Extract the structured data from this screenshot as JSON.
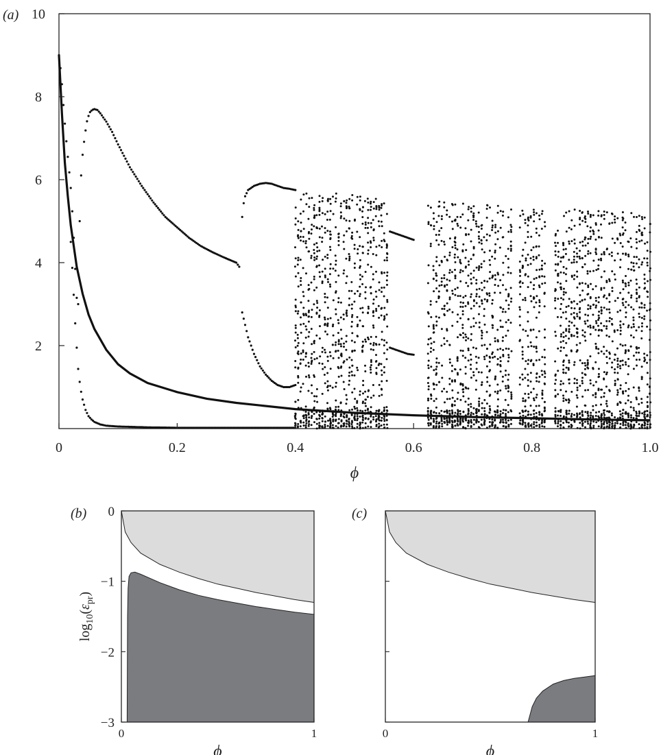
{
  "figure": {
    "panel_a_label": "(a)",
    "panel_b_label": "(b)",
    "panel_c_label": "(c)"
  },
  "chart_data": [
    {
      "type": "scatter",
      "panel": "(a)",
      "xlabel": "ϕ",
      "ylabel": "",
      "xlim": [
        0,
        1.0
      ],
      "ylim": [
        0,
        10
      ],
      "x_ticks": [
        "0",
        "0.2",
        "0.4",
        "0.6",
        "0.8",
        "1.0"
      ],
      "y_ticks": [
        "2",
        "4",
        "6",
        "8",
        "10"
      ],
      "grid": false,
      "series": [
        {
          "kind": "curve",
          "style": "thick",
          "x": [
            0.0,
            0.005,
            0.01,
            0.015,
            0.02,
            0.03,
            0.04,
            0.05,
            0.06,
            0.08,
            0.1,
            0.12,
            0.15,
            0.2,
            0.25,
            0.3,
            0.4,
            0.5,
            0.6,
            0.7,
            0.8,
            0.9,
            1.0
          ],
          "y": [
            9.0,
            7.6,
            6.4,
            5.6,
            4.9,
            3.9,
            3.25,
            2.75,
            2.4,
            1.9,
            1.55,
            1.33,
            1.1,
            0.88,
            0.72,
            0.62,
            0.47,
            0.38,
            0.32,
            0.28,
            0.25,
            0.22,
            0.2
          ]
        },
        {
          "kind": "dots",
          "x": [
            0.0,
            0.004,
            0.008,
            0.012,
            0.016,
            0.02,
            0.024,
            0.028,
            0.032,
            0.036,
            0.04,
            0.044,
            0.048,
            0.052,
            0.056,
            0.06,
            0.065,
            0.07,
            0.08,
            0.09,
            0.1,
            0.12,
            0.14,
            0.16,
            0.18,
            0.2,
            0.22,
            0.24,
            0.26,
            0.28,
            0.3,
            0.305
          ],
          "y": [
            9.0,
            8.5,
            7.7,
            7.0,
            6.4,
            5.8,
            4.9,
            3.7,
            2.6,
            5.8,
            6.6,
            7.1,
            7.45,
            7.62,
            7.68,
            7.7,
            7.68,
            7.6,
            7.4,
            7.15,
            6.85,
            6.3,
            5.85,
            5.45,
            5.1,
            4.85,
            4.6,
            4.4,
            4.25,
            4.12,
            4.0,
            3.9
          ]
        },
        {
          "kind": "dots",
          "x": [
            0.02,
            0.024,
            0.028,
            0.032,
            0.036,
            0.04,
            0.045,
            0.05,
            0.055,
            0.06,
            0.07,
            0.08,
            0.1,
            0.15,
            0.2,
            0.3,
            0.4
          ],
          "y": [
            4.5,
            3.5,
            2.4,
            1.5,
            1.0,
            0.7,
            0.45,
            0.3,
            0.22,
            0.16,
            0.1,
            0.07,
            0.05,
            0.03,
            0.02,
            0.02,
            0.02
          ]
        },
        {
          "kind": "dots",
          "x": [
            0.31,
            0.312,
            0.315,
            0.32,
            0.33,
            0.34,
            0.35,
            0.36,
            0.37,
            0.38,
            0.39,
            0.4
          ],
          "y": [
            5.1,
            5.4,
            5.6,
            5.75,
            5.85,
            5.9,
            5.92,
            5.9,
            5.85,
            5.8,
            5.78,
            5.75
          ]
        },
        {
          "kind": "dots",
          "x": [
            0.31,
            0.32,
            0.33,
            0.34,
            0.35,
            0.36,
            0.37,
            0.38,
            0.39,
            0.4
          ],
          "y": [
            2.8,
            2.2,
            1.8,
            1.5,
            1.3,
            1.15,
            1.05,
            1.0,
            1.0,
            1.05
          ]
        },
        {
          "kind": "dots",
          "x": [
            0.56,
            0.57,
            0.58,
            0.59,
            0.6
          ],
          "y": [
            4.75,
            4.7,
            4.65,
            4.6,
            4.55
          ]
        },
        {
          "kind": "dots",
          "x": [
            0.56,
            0.57,
            0.58,
            0.59,
            0.6
          ],
          "y": [
            1.95,
            1.9,
            1.85,
            1.8,
            1.78
          ]
        },
        {
          "kind": "chaotic-band",
          "x_ranges": [
            [
              0.4,
              0.555
            ],
            [
              0.625,
              0.765
            ],
            [
              0.78,
              0.822
            ],
            [
              0.84,
              1.0
            ]
          ],
          "upper_y": [
            [
              5.8,
              5.55
            ],
            [
              5.5,
              5.35
            ],
            [
              5.3,
              5.3
            ],
            [
              5.3,
              5.2
            ]
          ],
          "lower_y": [
            0.0,
            0.0,
            0.0,
            0.0
          ]
        }
      ]
    },
    {
      "type": "area",
      "panel": "(b)",
      "xlabel": "ϕ",
      "ylabel": "log10(εpr)",
      "xlim": [
        0,
        1
      ],
      "ylim": [
        -3,
        0
      ],
      "x_ticks": [
        "0",
        "1"
      ],
      "y_ticks": [
        "0",
        "−1",
        "−2",
        "−3"
      ],
      "series": [
        {
          "fill": "#dcdcdc",
          "x": [
            0.0,
            0.01,
            0.02,
            0.05,
            0.1,
            0.2,
            0.3,
            0.4,
            0.5,
            0.6,
            0.7,
            0.8,
            0.9,
            1.0
          ],
          "boundary_y": [
            0.0,
            -0.15,
            -0.3,
            -0.45,
            -0.6,
            -0.76,
            -0.87,
            -0.96,
            -1.04,
            -1.1,
            -1.16,
            -1.21,
            -1.26,
            -1.3
          ]
        },
        {
          "fill": "#7b7c80",
          "x": [
            0.03,
            0.032,
            0.035,
            0.04,
            0.05,
            0.07,
            0.1,
            0.2,
            0.3,
            0.4,
            0.5,
            0.6,
            0.7,
            0.8,
            0.9,
            1.0
          ],
          "boundary_y": [
            -3.0,
            -1.5,
            -1.1,
            -0.93,
            -0.88,
            -0.87,
            -0.9,
            -1.02,
            -1.12,
            -1.2,
            -1.26,
            -1.31,
            -1.36,
            -1.4,
            -1.44,
            -1.47
          ]
        }
      ]
    },
    {
      "type": "area",
      "panel": "(c)",
      "xlabel": "ϕ",
      "ylabel": "",
      "xlim": [
        0,
        1
      ],
      "ylim": [
        -3,
        0
      ],
      "x_ticks": [
        "0",
        "1"
      ],
      "y_ticks": [],
      "series": [
        {
          "fill": "#dcdcdc",
          "x": [
            0.0,
            0.01,
            0.02,
            0.05,
            0.1,
            0.2,
            0.3,
            0.4,
            0.5,
            0.6,
            0.7,
            0.8,
            0.9,
            1.0
          ],
          "boundary_y": [
            0.0,
            -0.15,
            -0.3,
            -0.45,
            -0.6,
            -0.76,
            -0.87,
            -0.96,
            -1.04,
            -1.1,
            -1.16,
            -1.21,
            -1.26,
            -1.3
          ]
        },
        {
          "fill": "#7b7c80",
          "x": [
            0.68,
            0.7,
            0.72,
            0.75,
            0.8,
            0.85,
            0.9,
            0.95,
            1.0
          ],
          "boundary_y": [
            -3.0,
            -2.78,
            -2.66,
            -2.56,
            -2.46,
            -2.41,
            -2.38,
            -2.36,
            -2.34
          ]
        }
      ]
    }
  ]
}
